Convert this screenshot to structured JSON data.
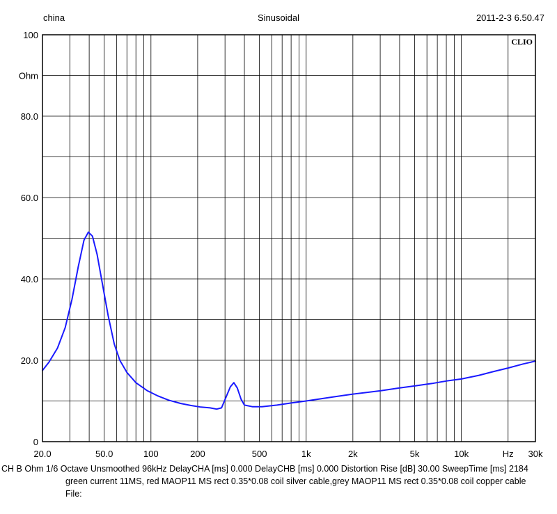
{
  "header": {
    "left": "china",
    "center": "Sinusoidal",
    "right": "2011-2-3 6.50.47"
  },
  "brand": "CLIO",
  "footer": {
    "line1": "CH B   Ohm    1/6 Octave   Unsmoothed   96kHz   DelayCHA [ms] 0.000     DelayCHB [ms] 0.000     Distortion Rise [dB] 30.00     SweepTime [ms] 2184",
    "line2": "green current 11MS, red MAOP11 MS rect 0.35*0.08 coil silver cable,grey MAOP11 MS rect 0.35*0.08 coil copper cable",
    "line3": "File:"
  },
  "chart_data": {
    "type": "line",
    "xscale": "log",
    "xlim": [
      20,
      30000
    ],
    "ylim": [
      0,
      100
    ],
    "yunit_label": "Ohm",
    "grid": true,
    "x_ticks": [
      {
        "value": 20,
        "label": "20.0"
      },
      {
        "value": 50,
        "label": "50.0"
      },
      {
        "value": 100,
        "label": "100"
      },
      {
        "value": 200,
        "label": "200"
      },
      {
        "value": 500,
        "label": "500"
      },
      {
        "value": 1000,
        "label": "1k"
      },
      {
        "value": 2000,
        "label": "2k"
      },
      {
        "value": 5000,
        "label": "5k"
      },
      {
        "value": 10000,
        "label": "10k"
      },
      {
        "value": 20000,
        "label": "Hz"
      },
      {
        "value": 30000,
        "label": "30k"
      }
    ],
    "y_ticks": [
      {
        "value": 0,
        "label": "0"
      },
      {
        "value": 20,
        "label": "20.0"
      },
      {
        "value": 40,
        "label": "40.0"
      },
      {
        "value": 60,
        "label": "60.0"
      },
      {
        "value": 80,
        "label": "80.0"
      },
      {
        "value": 100,
        "label": "100"
      }
    ],
    "series": [
      {
        "color": "#1a1aff",
        "points": [
          [
            20,
            17.5
          ],
          [
            22,
            19.5
          ],
          [
            25,
            23
          ],
          [
            28,
            28
          ],
          [
            31,
            35
          ],
          [
            34,
            43
          ],
          [
            37,
            49.5
          ],
          [
            39.5,
            51.5
          ],
          [
            42,
            50.5
          ],
          [
            45,
            46
          ],
          [
            48,
            40
          ],
          [
            53,
            31
          ],
          [
            58,
            24
          ],
          [
            63,
            20
          ],
          [
            70,
            17
          ],
          [
            80,
            14.5
          ],
          [
            95,
            12.5
          ],
          [
            110,
            11.3
          ],
          [
            130,
            10.2
          ],
          [
            155,
            9.4
          ],
          [
            180,
            8.9
          ],
          [
            210,
            8.5
          ],
          [
            240,
            8.3
          ],
          [
            265,
            8.0
          ],
          [
            285,
            8.3
          ],
          [
            305,
            11.0
          ],
          [
            325,
            13.5
          ],
          [
            342,
            14.5
          ],
          [
            360,
            13.2
          ],
          [
            380,
            10.5
          ],
          [
            400,
            9.0
          ],
          [
            450,
            8.6
          ],
          [
            520,
            8.6
          ],
          [
            650,
            9.0
          ],
          [
            800,
            9.5
          ],
          [
            1000,
            10.0
          ],
          [
            1500,
            11.0
          ],
          [
            2000,
            11.7
          ],
          [
            3000,
            12.5
          ],
          [
            4000,
            13.2
          ],
          [
            5000,
            13.7
          ],
          [
            6500,
            14.3
          ],
          [
            8000,
            14.9
          ],
          [
            10000,
            15.4
          ],
          [
            13000,
            16.3
          ],
          [
            16000,
            17.2
          ],
          [
            20000,
            18.1
          ],
          [
            25000,
            19.1
          ],
          [
            30000,
            19.8
          ]
        ]
      }
    ]
  }
}
